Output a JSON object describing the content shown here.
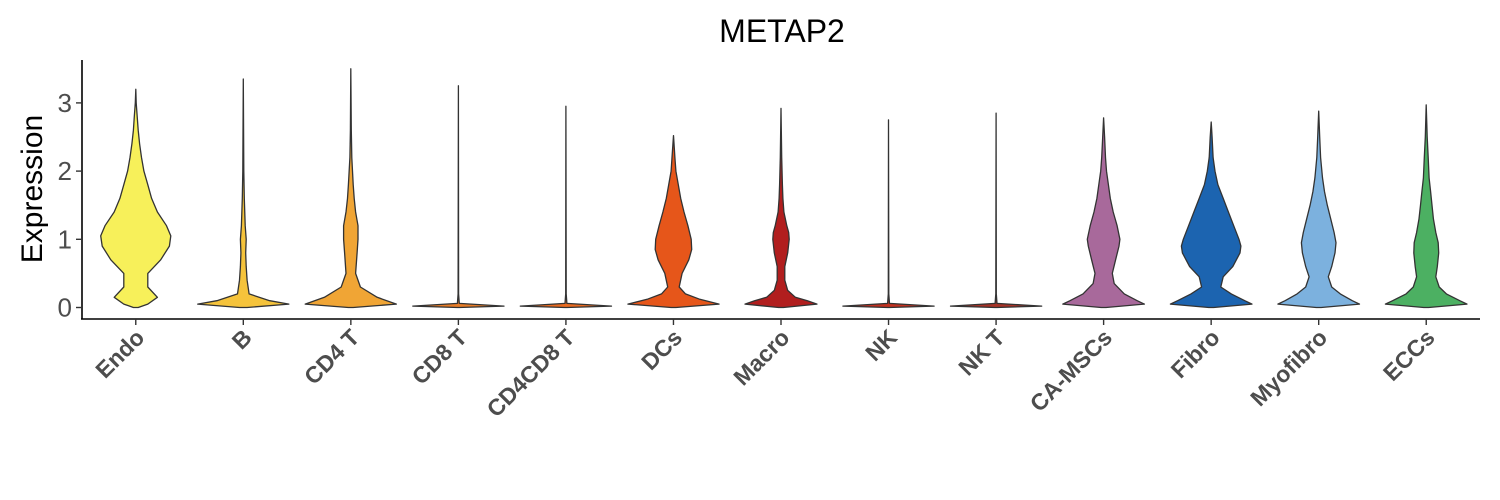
{
  "chart_data": {
    "type": "violin",
    "title": "METAP2",
    "ylabel": "Expression",
    "xlabel": "",
    "ylim": [
      -0.15,
      3.6
    ],
    "yticks": [
      "0",
      "1",
      "2",
      "3"
    ],
    "grid": false,
    "legend": "none",
    "categories": [
      "Endo",
      "B",
      "CD4 T",
      "CD8 T",
      "CD4CD8 T",
      "DCs",
      "Macro",
      "NK",
      "NK T",
      "CA-MSCs",
      "Fibro",
      "Myofibro",
      "ECCs"
    ],
    "series": [
      {
        "category": "Endo",
        "color": "#f7f05a",
        "max": 3.2,
        "density": [
          [
            0,
            0.05
          ],
          [
            0.05,
            0.25
          ],
          [
            0.15,
            0.45
          ],
          [
            0.3,
            0.25
          ],
          [
            0.5,
            0.25
          ],
          [
            0.7,
            0.52
          ],
          [
            0.9,
            0.7
          ],
          [
            1.05,
            0.73
          ],
          [
            1.2,
            0.64
          ],
          [
            1.4,
            0.45
          ],
          [
            1.6,
            0.33
          ],
          [
            1.8,
            0.25
          ],
          [
            2.0,
            0.17
          ],
          [
            2.2,
            0.12
          ],
          [
            2.4,
            0.08
          ],
          [
            2.6,
            0.05
          ],
          [
            2.8,
            0.03
          ],
          [
            3.0,
            0.01
          ],
          [
            3.2,
            0
          ]
        ]
      },
      {
        "category": "B",
        "color": "#f5c33b",
        "max": 3.35,
        "density": [
          [
            0,
            0.08
          ],
          [
            0.05,
            0.95
          ],
          [
            0.1,
            0.55
          ],
          [
            0.2,
            0.12
          ],
          [
            0.4,
            0.08
          ],
          [
            0.6,
            0.06
          ],
          [
            0.8,
            0.05
          ],
          [
            1.0,
            0.06
          ],
          [
            1.2,
            0.04
          ],
          [
            1.6,
            0.02
          ],
          [
            2.0,
            0.01
          ],
          [
            3.35,
            0
          ]
        ]
      },
      {
        "category": "CD4 T",
        "color": "#f0a535",
        "max": 3.5,
        "density": [
          [
            0,
            0.05
          ],
          [
            0.05,
            0.95
          ],
          [
            0.15,
            0.55
          ],
          [
            0.3,
            0.2
          ],
          [
            0.5,
            0.1
          ],
          [
            0.8,
            0.13
          ],
          [
            1.0,
            0.15
          ],
          [
            1.2,
            0.15
          ],
          [
            1.4,
            0.1
          ],
          [
            1.6,
            0.07
          ],
          [
            1.8,
            0.05
          ],
          [
            2.2,
            0.02
          ],
          [
            2.6,
            0.01
          ],
          [
            3.5,
            0
          ]
        ]
      },
      {
        "category": "CD8 T",
        "color": "#e87c26",
        "max": 3.25,
        "density": [
          [
            0,
            0.02
          ],
          [
            0.02,
            0.95
          ],
          [
            0.06,
            0.02
          ],
          [
            0.2,
            0.005
          ],
          [
            3.25,
            0
          ]
        ]
      },
      {
        "category": "CD4CD8 T",
        "color": "#ea6a1f",
        "max": 2.95,
        "density": [
          [
            0,
            0.02
          ],
          [
            0.02,
            0.95
          ],
          [
            0.06,
            0.02
          ],
          [
            0.2,
            0.005
          ],
          [
            2.95,
            0
          ]
        ]
      },
      {
        "category": "DCs",
        "color": "#e6561a",
        "max": 2.52,
        "density": [
          [
            0,
            0.05
          ],
          [
            0.05,
            0.95
          ],
          [
            0.12,
            0.55
          ],
          [
            0.2,
            0.25
          ],
          [
            0.3,
            0.12
          ],
          [
            0.5,
            0.18
          ],
          [
            0.7,
            0.32
          ],
          [
            0.85,
            0.38
          ],
          [
            1.0,
            0.37
          ],
          [
            1.2,
            0.3
          ],
          [
            1.4,
            0.22
          ],
          [
            1.6,
            0.15
          ],
          [
            1.8,
            0.1
          ],
          [
            2.0,
            0.05
          ],
          [
            2.2,
            0.03
          ],
          [
            2.52,
            0
          ]
        ]
      },
      {
        "category": "Macro",
        "color": "#b11e1e",
        "max": 2.92,
        "density": [
          [
            0,
            0.05
          ],
          [
            0.05,
            0.75
          ],
          [
            0.1,
            0.55
          ],
          [
            0.15,
            0.3
          ],
          [
            0.25,
            0.14
          ],
          [
            0.4,
            0.08
          ],
          [
            0.6,
            0.08
          ],
          [
            0.8,
            0.14
          ],
          [
            1.0,
            0.17
          ],
          [
            1.1,
            0.16
          ],
          [
            1.2,
            0.12
          ],
          [
            1.4,
            0.06
          ],
          [
            1.6,
            0.04
          ],
          [
            1.8,
            0.03
          ],
          [
            2.2,
            0.015
          ],
          [
            2.92,
            0
          ]
        ]
      },
      {
        "category": "NK",
        "color": "#c2301f",
        "max": 2.75,
        "density": [
          [
            0,
            0.02
          ],
          [
            0.02,
            0.95
          ],
          [
            0.06,
            0.02
          ],
          [
            0.2,
            0.005
          ],
          [
            2.75,
            0
          ]
        ]
      },
      {
        "category": "NK T",
        "color": "#a83226",
        "max": 2.85,
        "density": [
          [
            0,
            0.02
          ],
          [
            0.02,
            0.95
          ],
          [
            0.06,
            0.02
          ],
          [
            0.2,
            0.005
          ],
          [
            2.85,
            0
          ]
        ]
      },
      {
        "category": "CA-MSCs",
        "color": "#a8699b",
        "max": 2.78,
        "density": [
          [
            0,
            0.05
          ],
          [
            0.05,
            0.85
          ],
          [
            0.1,
            0.7
          ],
          [
            0.2,
            0.43
          ],
          [
            0.35,
            0.22
          ],
          [
            0.5,
            0.18
          ],
          [
            0.7,
            0.25
          ],
          [
            0.9,
            0.32
          ],
          [
            1.0,
            0.34
          ],
          [
            1.2,
            0.28
          ],
          [
            1.4,
            0.2
          ],
          [
            1.6,
            0.14
          ],
          [
            1.8,
            0.1
          ],
          [
            2.0,
            0.06
          ],
          [
            2.2,
            0.04
          ],
          [
            2.5,
            0.02
          ],
          [
            2.78,
            0
          ]
        ]
      },
      {
        "category": "Fibro",
        "color": "#1c64b0",
        "max": 2.72,
        "density": [
          [
            0,
            0.05
          ],
          [
            0.05,
            0.85
          ],
          [
            0.1,
            0.7
          ],
          [
            0.2,
            0.42
          ],
          [
            0.3,
            0.2
          ],
          [
            0.45,
            0.25
          ],
          [
            0.6,
            0.45
          ],
          [
            0.8,
            0.6
          ],
          [
            0.9,
            0.62
          ],
          [
            1.0,
            0.58
          ],
          [
            1.2,
            0.47
          ],
          [
            1.4,
            0.36
          ],
          [
            1.6,
            0.25
          ],
          [
            1.8,
            0.14
          ],
          [
            2.0,
            0.08
          ],
          [
            2.2,
            0.04
          ],
          [
            2.5,
            0.02
          ],
          [
            2.72,
            0
          ]
        ]
      },
      {
        "category": "Myofibro",
        "color": "#7cb1de",
        "max": 2.88,
        "density": [
          [
            0,
            0.05
          ],
          [
            0.05,
            0.85
          ],
          [
            0.1,
            0.7
          ],
          [
            0.2,
            0.45
          ],
          [
            0.3,
            0.27
          ],
          [
            0.45,
            0.2
          ],
          [
            0.6,
            0.27
          ],
          [
            0.8,
            0.34
          ],
          [
            0.95,
            0.36
          ],
          [
            1.1,
            0.32
          ],
          [
            1.3,
            0.25
          ],
          [
            1.5,
            0.18
          ],
          [
            1.7,
            0.12
          ],
          [
            1.9,
            0.08
          ],
          [
            2.2,
            0.04
          ],
          [
            2.5,
            0.02
          ],
          [
            2.88,
            0
          ]
        ]
      },
      {
        "category": "ECCs",
        "color": "#4cb062",
        "max": 2.97,
        "density": [
          [
            0,
            0.05
          ],
          [
            0.05,
            0.85
          ],
          [
            0.1,
            0.7
          ],
          [
            0.2,
            0.42
          ],
          [
            0.3,
            0.27
          ],
          [
            0.45,
            0.2
          ],
          [
            0.6,
            0.23
          ],
          [
            0.8,
            0.26
          ],
          [
            0.95,
            0.25
          ],
          [
            1.1,
            0.2
          ],
          [
            1.3,
            0.15
          ],
          [
            1.5,
            0.12
          ],
          [
            1.7,
            0.09
          ],
          [
            1.9,
            0.06
          ],
          [
            2.2,
            0.04
          ],
          [
            2.5,
            0.02
          ],
          [
            2.97,
            0
          ]
        ]
      }
    ]
  }
}
